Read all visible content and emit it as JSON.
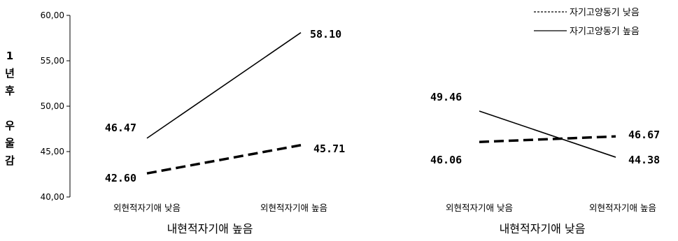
{
  "chart_data": {
    "type": "line",
    "ylabel_chars": [
      "1",
      "년",
      "후",
      "",
      "우",
      "울",
      "감"
    ],
    "ylim": [
      40,
      60
    ],
    "yticks": [
      {
        "value": 40,
        "label": "40,00"
      },
      {
        "value": 45,
        "label": "45,00"
      },
      {
        "value": 50,
        "label": "50,00"
      },
      {
        "value": 55,
        "label": "55,00"
      },
      {
        "value": 60,
        "label": "60,00"
      }
    ],
    "grid": false,
    "legend_position": "top-right",
    "panels": [
      {
        "group_label": "내현적자기애 높음",
        "categories": [
          "외현적자기애 낮음",
          "외현적자기애 높음"
        ],
        "series": [
          {
            "name": "자기고양동기 낮음",
            "style": "dashed",
            "values": [
              42.6,
              45.71
            ],
            "labels": [
              "42.60",
              "45.71"
            ]
          },
          {
            "name": "자기고양동기 높음",
            "style": "solid",
            "values": [
              46.47,
              58.1
            ],
            "labels": [
              "46.47",
              "58.10"
            ]
          }
        ]
      },
      {
        "group_label": "내현적자기애 낮음",
        "categories": [
          "외현적자기애 낮음",
          "외현적자기애 높음"
        ],
        "series": [
          {
            "name": "자기고양동기 낮음",
            "style": "dashed",
            "values": [
              46.06,
              46.67
            ],
            "labels": [
              "46.06",
              "46.67"
            ]
          },
          {
            "name": "자기고양동기 높음",
            "style": "solid",
            "values": [
              49.46,
              44.38
            ],
            "labels": [
              "49.46",
              "44.38"
            ]
          }
        ]
      }
    ],
    "legend": [
      {
        "name": "자기고양동기 낮음",
        "style": "dashed"
      },
      {
        "name": "자기고양동기 높음",
        "style": "solid"
      }
    ],
    "colors": {
      "line": "#000000",
      "axis": "#000000"
    }
  }
}
